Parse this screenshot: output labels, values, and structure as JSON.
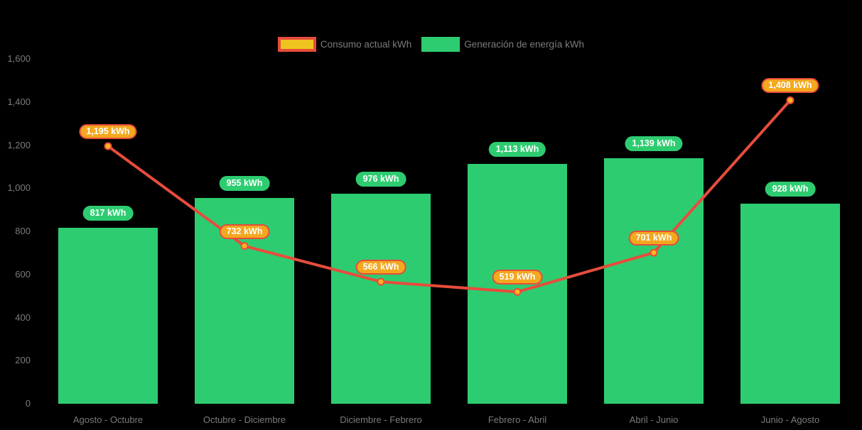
{
  "legend": {
    "items": [
      {
        "id": "consumo",
        "label": "Consumo actual kWh"
      },
      {
        "id": "generacion",
        "label": "Generación de energía kWh"
      }
    ]
  },
  "colors": {
    "background": "#000000",
    "bar_green": "#2ECC71",
    "line_red": "#E74C3C",
    "marker_fill": "#FFB41E",
    "line_label_bg": "#F3A81E",
    "line_label_border": "#E74C3C",
    "legend_swatch_yellow": "#F0C41E",
    "axis_text": "#7B7B7B",
    "value_label_text": "#FFFFFF"
  },
  "chart_data": {
    "type": "combo",
    "title": "",
    "categories": [
      "Agosto - Octubre",
      "Octubre - Diciembre",
      "Diciembre - Febrero",
      "Febrero - Abril",
      "Abril - Junio",
      "Junio - Agosto"
    ],
    "series": [
      {
        "name": "Consumo actual kWh",
        "type": "line",
        "color": "#E74C3C",
        "values": [
          1195,
          732,
          566,
          519,
          701,
          1408
        ],
        "labels": [
          "1,195 kWh",
          "732 kWh",
          "566 kWh",
          "519 kWh",
          "701 kWh",
          "1,408 kWh"
        ]
      },
      {
        "name": "Generación de energía kWh",
        "type": "bar",
        "color": "#2ECC71",
        "values": [
          817,
          955,
          976,
          1113,
          1139,
          928
        ],
        "labels": [
          "817 kWh",
          "955 kWh",
          "976 kWh",
          "1,113 kWh",
          "1,139 kWh",
          "928 kWh"
        ]
      }
    ],
    "xlabel": "",
    "ylabel": "",
    "ylim": [
      0,
      1600
    ],
    "y_tick_labels": [
      "1,600",
      "1,400",
      "1,200",
      "1,000",
      "800",
      "600",
      "400",
      "200",
      "0"
    ],
    "grid": false,
    "legend_position": "top"
  }
}
